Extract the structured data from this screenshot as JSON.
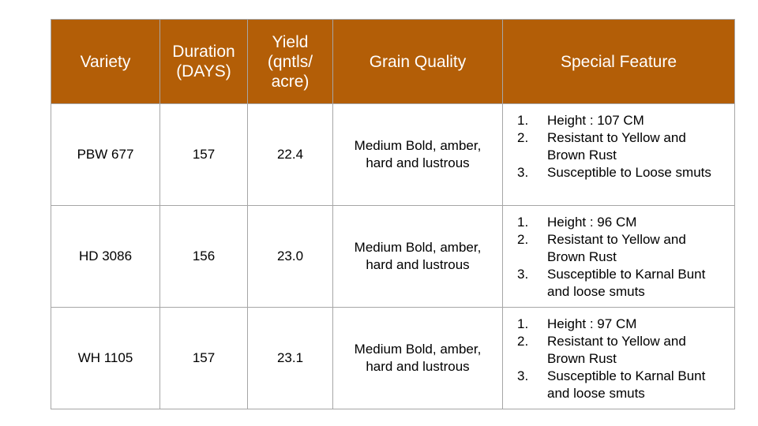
{
  "headers": {
    "variety": "Variety",
    "duration": [
      "Duration",
      "(DAYS)"
    ],
    "yield": [
      "Yield",
      "(qntls/",
      "acre)"
    ],
    "grain_quality": "Grain Quality",
    "special_feature": "Special Feature"
  },
  "rows": [
    {
      "variety": "PBW 677",
      "duration": "157",
      "yield": "22.4",
      "grain_quality": [
        "Medium Bold, amber,",
        "hard and lustrous"
      ],
      "features": [
        {
          "num": "1.",
          "text": "Height : 107 CM"
        },
        {
          "num": "2.",
          "text": "Resistant to Yellow and Brown Rust"
        },
        {
          "num": "3.",
          "text": "Susceptible to Loose smuts"
        }
      ]
    },
    {
      "variety": "HD 3086",
      "duration": "156",
      "yield": "23.0",
      "grain_quality": [
        "Medium Bold, amber,",
        "hard and lustrous"
      ],
      "features": [
        {
          "num": "1.",
          "text": "Height : 96 CM"
        },
        {
          "num": "2.",
          "text": "Resistant to Yellow and Brown Rust"
        },
        {
          "num": "3.",
          "text": "Susceptible to Karnal Bunt and loose smuts"
        }
      ]
    },
    {
      "variety": "WH 1105",
      "duration": "157",
      "yield": "23.1",
      "grain_quality": [
        "Medium Bold, amber,",
        "hard and lustrous"
      ],
      "features": [
        {
          "num": "1.",
          "text": "Height : 97 CM"
        },
        {
          "num": "2.",
          "text": "Resistant to Yellow and Brown Rust"
        },
        {
          "num": "3.",
          "text": "Susceptible to Karnal Bunt and loose smuts"
        }
      ]
    }
  ],
  "colors": {
    "header_background": "#b35e07",
    "header_text": "#ffffff",
    "border": "#a6a6a6"
  }
}
